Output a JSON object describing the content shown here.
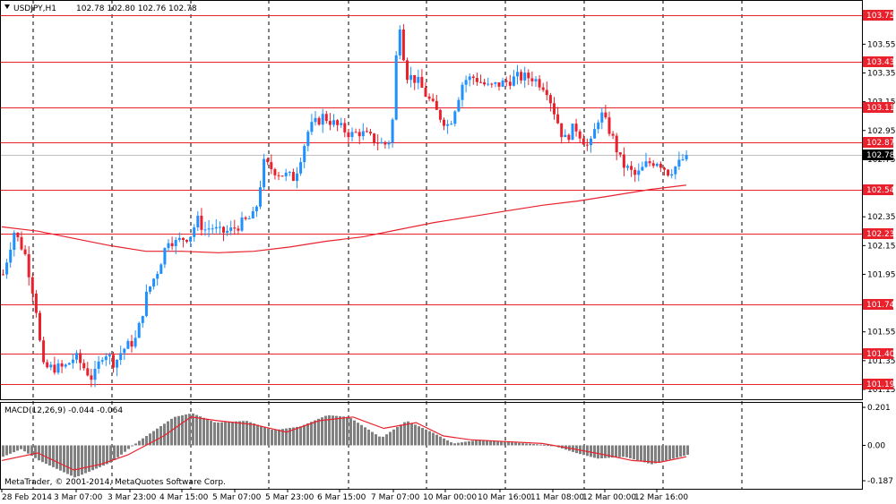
{
  "chart_data": [
    {
      "type": "candlestick",
      "symbol_header": "USDJPY,H1",
      "ohlc_header": "102.78 102.80 102.76 102.78",
      "y_axis_ticks": [
        "103.55",
        "103.35",
        "103.15",
        "102.95",
        "102.75",
        "102.35",
        "102.15",
        "101.95",
        "101.55",
        "101.35",
        "101.15"
      ],
      "ylim": [
        101.1,
        103.82
      ],
      "x_tick_labels": [
        "28 Feb 2014",
        "3 Mar 07:00",
        "3 Mar 23:00",
        "4 Mar 15:00",
        "5 Mar 07:00",
        "5 Mar 23:00",
        "6 Mar 15:00",
        "7 Mar 07:00",
        "10 Mar 00:00",
        "10 Mar 16:00",
        "11 Mar 08:00",
        "12 Mar 00:00",
        "12 Mar 16:00"
      ],
      "horizontal_levels": [
        {
          "label": "103.75",
          "value": 103.75
        },
        {
          "label": "103.43",
          "value": 103.43
        },
        {
          "label": "103.11",
          "value": 103.11
        },
        {
          "label": "102.87",
          "value": 102.87
        },
        {
          "label": "102.54",
          "value": 102.54
        },
        {
          "label": "102.23",
          "value": 102.23
        },
        {
          "label": "101.74",
          "value": 101.74
        },
        {
          "label": "101.40",
          "value": 101.4
        },
        {
          "label": "101.19",
          "value": 101.19
        }
      ],
      "current_price": {
        "label": "102.78",
        "value": 102.78
      },
      "bull_color": "#1E90FF",
      "bear_color": "#E8212C",
      "level_color": "#E8212C",
      "ma_color": "#E8212C",
      "close_path": [
        [
          0,
          101.95
        ],
        [
          6,
          102.25
        ],
        [
          12,
          102.1
        ],
        [
          18,
          101.75
        ],
        [
          22,
          101.3
        ],
        [
          34,
          101.3
        ],
        [
          40,
          101.38
        ],
        [
          50,
          101.22
        ],
        [
          56,
          101.42
        ],
        [
          62,
          101.33
        ],
        [
          66,
          101.42
        ],
        [
          74,
          101.5
        ],
        [
          80,
          101.82
        ],
        [
          86,
          101.98
        ],
        [
          92,
          102.2
        ],
        [
          96,
          102.17
        ],
        [
          100,
          102.2
        ],
        [
          104,
          102.22
        ],
        [
          108,
          102.33
        ],
        [
          112,
          102.26
        ],
        [
          116,
          102.28
        ],
        [
          120,
          102.24
        ],
        [
          126,
          102.25
        ],
        [
          132,
          102.3
        ],
        [
          140,
          102.36
        ],
        [
          145,
          102.72
        ],
        [
          154,
          102.65
        ],
        [
          162,
          102.62
        ],
        [
          170,
          102.96
        ],
        [
          178,
          103.05
        ],
        [
          186,
          102.98
        ],
        [
          194,
          102.92
        ],
        [
          198,
          102.94
        ],
        [
          204,
          102.9
        ],
        [
          212,
          102.85
        ],
        [
          216,
          102.9
        ],
        [
          220,
          103.76
        ],
        [
          224,
          103.34
        ],
        [
          230,
          103.3
        ],
        [
          236,
          103.18
        ],
        [
          242,
          103.06
        ],
        [
          248,
          102.98
        ],
        [
          256,
          103.3
        ],
        [
          262,
          103.32
        ],
        [
          270,
          103.25
        ],
        [
          278,
          103.28
        ],
        [
          286,
          103.32
        ],
        [
          294,
          103.32
        ],
        [
          302,
          103.25
        ],
        [
          306,
          103.1
        ],
        [
          312,
          102.88
        ],
        [
          318,
          102.98
        ],
        [
          326,
          102.82
        ],
        [
          332,
          103.08
        ],
        [
          338,
          102.93
        ],
        [
          344,
          102.72
        ],
        [
          352,
          102.63
        ],
        [
          358,
          102.72
        ],
        [
          364,
          102.74
        ],
        [
          370,
          102.66
        ],
        [
          376,
          102.72
        ],
        [
          380,
          102.78
        ]
      ],
      "ma_path": [
        [
          0,
          102.28
        ],
        [
          20,
          102.25
        ],
        [
          40,
          102.2
        ],
        [
          60,
          102.15
        ],
        [
          80,
          102.11
        ],
        [
          100,
          102.11
        ],
        [
          120,
          102.1
        ],
        [
          140,
          102.11
        ],
        [
          160,
          102.14
        ],
        [
          180,
          102.18
        ],
        [
          200,
          102.21
        ],
        [
          220,
          102.26
        ],
        [
          240,
          102.31
        ],
        [
          260,
          102.35
        ],
        [
          280,
          102.39
        ],
        [
          300,
          102.43
        ],
        [
          320,
          102.46
        ],
        [
          340,
          102.5
        ],
        [
          360,
          102.54
        ],
        [
          380,
          102.57
        ]
      ]
    },
    {
      "type": "histogram",
      "indicator_header": "MACD(12,26,9) -0.044 -0.064",
      "y_axis_ticks": [
        "0.201",
        "0.00",
        "-0.187"
      ],
      "ylim": [
        -0.22,
        0.22
      ],
      "bar_color": "#808080",
      "signal_color": "#E8212C",
      "histogram_path": [
        [
          0,
          -0.06
        ],
        [
          10,
          -0.02
        ],
        [
          20,
          -0.08
        ],
        [
          40,
          -0.17
        ],
        [
          60,
          -0.09
        ],
        [
          75,
          0.02
        ],
        [
          95,
          0.15
        ],
        [
          105,
          0.17
        ],
        [
          118,
          0.12
        ],
        [
          135,
          0.13
        ],
        [
          150,
          0.08
        ],
        [
          165,
          0.1
        ],
        [
          180,
          0.16
        ],
        [
          192,
          0.15
        ],
        [
          210,
          0.04
        ],
        [
          224,
          0.13
        ],
        [
          238,
          0.07
        ],
        [
          250,
          0.01
        ],
        [
          265,
          0.03
        ],
        [
          290,
          0.01
        ],
        [
          305,
          0.0
        ],
        [
          318,
          -0.04
        ],
        [
          330,
          -0.07
        ],
        [
          345,
          -0.06
        ],
        [
          360,
          -0.1
        ],
        [
          380,
          -0.05
        ]
      ],
      "signal_path": [
        [
          0,
          -0.08
        ],
        [
          20,
          -0.04
        ],
        [
          40,
          -0.13
        ],
        [
          55,
          -0.1
        ],
        [
          70,
          -0.05
        ],
        [
          90,
          0.05
        ],
        [
          105,
          0.15
        ],
        [
          120,
          0.13
        ],
        [
          140,
          0.11
        ],
        [
          158,
          0.07
        ],
        [
          176,
          0.13
        ],
        [
          195,
          0.15
        ],
        [
          212,
          0.09
        ],
        [
          230,
          0.12
        ],
        [
          245,
          0.05
        ],
        [
          260,
          0.03
        ],
        [
          280,
          0.02
        ],
        [
          300,
          0.01
        ],
        [
          318,
          -0.02
        ],
        [
          335,
          -0.05
        ],
        [
          350,
          -0.08
        ],
        [
          365,
          -0.09
        ],
        [
          380,
          -0.06
        ]
      ]
    }
  ],
  "footer_text": "MetaTrader, © 2001-2014, MetaQuotes Software Corp."
}
